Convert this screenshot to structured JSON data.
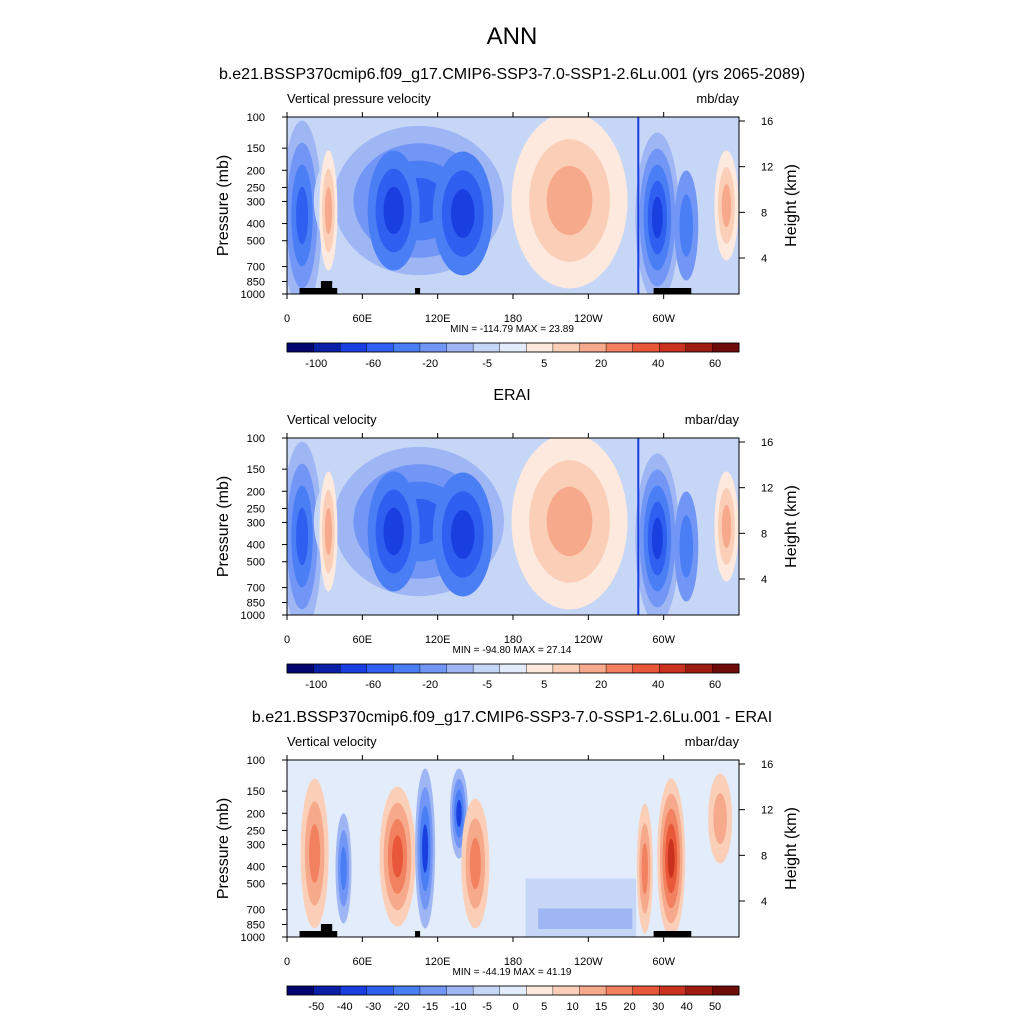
{
  "figure": {
    "season": "ANN",
    "subtitle": "b.e21.BSSP370cmip6.f09_g17.CMIP6-SSP3-7.0-SSP1-2.6Lu.001 (yrs 2065-2089)"
  },
  "chart_data": [
    {
      "type": "heatmap",
      "panel_title": "",
      "left_label": "Vertical pressure velocity",
      "right_label": "mb/day",
      "xlabel": "",
      "ylabel": "Pressure (mb)",
      "ylabel_right": "Height (km)",
      "x_ticks": [
        "0",
        "60E",
        "120E",
        "180",
        "120W",
        "60W"
      ],
      "y_ticks": [
        "100",
        "150",
        "200",
        "250",
        "300",
        "400",
        "500",
        "700",
        "850",
        "1000"
      ],
      "height_ticks": [
        "16",
        "12",
        "8",
        "4"
      ],
      "stats": "MIN = -114.79  MAX =  23.89",
      "min": -114.79,
      "max": 23.89,
      "colorbar_levels": [
        "-100",
        "-60",
        "-20",
        "-5",
        "5",
        "20",
        "40",
        "60"
      ],
      "terrain": true
    },
    {
      "type": "heatmap",
      "panel_title": "ERAI",
      "left_label": "Vertical velocity",
      "right_label": "mbar/day",
      "xlabel": "",
      "ylabel": "Pressure (mb)",
      "ylabel_right": "Height (km)",
      "x_ticks": [
        "0",
        "60E",
        "120E",
        "180",
        "120W",
        "60W"
      ],
      "y_ticks": [
        "100",
        "150",
        "200",
        "250",
        "300",
        "400",
        "500",
        "700",
        "850",
        "1000"
      ],
      "height_ticks": [
        "16",
        "12",
        "8",
        "4"
      ],
      "stats": "MIN = -94.80  MAX =  27.14",
      "min": -94.8,
      "max": 27.14,
      "colorbar_levels": [
        "-100",
        "-60",
        "-20",
        "-5",
        "5",
        "20",
        "40",
        "60"
      ],
      "terrain": false
    },
    {
      "type": "heatmap",
      "panel_title": "b.e21.BSSP370cmip6.f09_g17.CMIP6-SSP3-7.0-SSP1-2.6Lu.001 - ERAI",
      "left_label": "Vertical velocity",
      "right_label": "mbar/day",
      "xlabel": "",
      "ylabel": "Pressure (mb)",
      "ylabel_right": "Height (km)",
      "x_ticks": [
        "0",
        "60E",
        "120E",
        "180",
        "120W",
        "60W"
      ],
      "y_ticks": [
        "100",
        "150",
        "200",
        "250",
        "300",
        "400",
        "500",
        "700",
        "850",
        "1000"
      ],
      "height_ticks": [
        "16",
        "12",
        "8",
        "4"
      ],
      "stats": "MIN = -44.19  MAX =  41.19",
      "min": -44.19,
      "max": 41.19,
      "colorbar_levels": [
        "-50",
        "-40",
        "-30",
        "-20",
        "-15",
        "-10",
        "-5",
        "0",
        "5",
        "10",
        "15",
        "20",
        "30",
        "40",
        "50"
      ],
      "terrain": true
    }
  ],
  "colors": {
    "ramp": [
      "#04046e",
      "#0a1fa8",
      "#1a3fe0",
      "#2f5ff0",
      "#4a7ef5",
      "#7196f5",
      "#9fb6f5",
      "#c6d6f7",
      "#e3ecfb",
      "#fde9dd",
      "#fbcfb7",
      "#f7a98b",
      "#f2815f",
      "#e8573a",
      "#c9321f",
      "#9e1c12",
      "#6e0a08"
    ],
    "terrain": "#000000"
  }
}
